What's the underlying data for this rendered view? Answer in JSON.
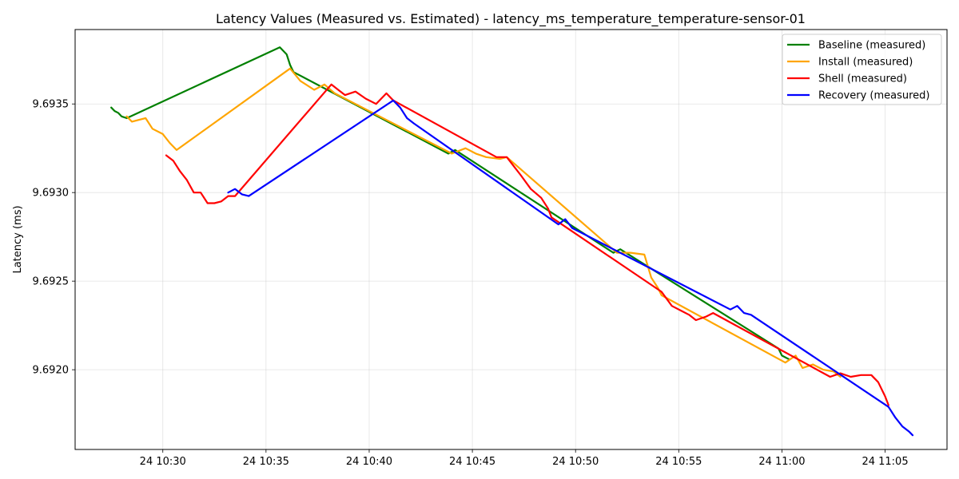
{
  "chart_data": {
    "type": "line",
    "title": "Latency Values (Measured vs. Estimated) - latency_ms_temperature_temperature-sensor-01",
    "xlabel": "",
    "ylabel": "Latency (ms)",
    "x_ticks": [
      "24 10:30",
      "24 10:35",
      "24 10:40",
      "24 10:45",
      "24 10:50",
      "24 10:55",
      "24 11:00",
      "24 11:05"
    ],
    "y_ticks": [
      "9.6920",
      "9.6925",
      "9.6930",
      "9.6935"
    ],
    "xlim": [
      "10:25:45",
      "11:08:00"
    ],
    "ylim": [
      9.69155,
      9.69392
    ],
    "grid": true,
    "legend_position": "top-right",
    "series": [
      {
        "name": "Baseline (measured)",
        "color": "#008000",
        "points": [
          [
            "10:27:30",
            9.69348
          ],
          [
            "10:27:40",
            9.69346
          ],
          [
            "10:27:50",
            9.69345
          ],
          [
            "10:28:00",
            9.69343
          ],
          [
            "10:28:15",
            9.69342
          ],
          [
            "10:35:40",
            9.69382
          ],
          [
            "10:35:50",
            9.6938
          ],
          [
            "10:36:00",
            9.69378
          ],
          [
            "10:36:10",
            9.69372
          ],
          [
            "10:36:20",
            9.69368
          ],
          [
            "10:43:40",
            9.69323
          ],
          [
            "10:43:50",
            9.69322
          ],
          [
            "10:44:10",
            9.69324
          ],
          [
            "10:51:50",
            9.69266
          ],
          [
            "10:52:00",
            9.69267
          ],
          [
            "10:52:10",
            9.69268
          ],
          [
            "10:59:50",
            9.69212
          ],
          [
            "11:00:00",
            9.69208
          ],
          [
            "11:00:10",
            9.69207
          ],
          [
            "11:00:20",
            9.69206
          ]
        ]
      },
      {
        "name": "Install (measured)",
        "color": "#FFA500",
        "points": [
          [
            "10:28:15",
            9.69343
          ],
          [
            "10:28:30",
            9.6934
          ],
          [
            "10:28:50",
            9.69341
          ],
          [
            "10:29:10",
            9.69342
          ],
          [
            "10:29:30",
            9.69336
          ],
          [
            "10:30:00",
            9.69333
          ],
          [
            "10:30:20",
            9.69328
          ],
          [
            "10:30:40",
            9.69324
          ],
          [
            "10:36:10",
            9.6937
          ],
          [
            "10:36:40",
            9.69363
          ],
          [
            "10:37:20",
            9.69358
          ],
          [
            "10:37:50",
            9.69361
          ],
          [
            "10:38:20",
            9.69356
          ],
          [
            "10:44:00",
            9.69322
          ],
          [
            "10:44:40",
            9.69325
          ],
          [
            "10:45:10",
            9.69322
          ],
          [
            "10:45:40",
            9.6932
          ],
          [
            "10:46:20",
            9.69319
          ],
          [
            "10:46:40",
            9.6932
          ],
          [
            "10:52:00",
            9.69266
          ],
          [
            "10:52:40",
            9.69266
          ],
          [
            "10:53:20",
            9.69265
          ],
          [
            "10:53:40",
            9.69252
          ],
          [
            "10:54:00",
            9.69246
          ],
          [
            "10:54:10",
            9.69242
          ],
          [
            "11:00:10",
            9.69204
          ],
          [
            "11:00:40",
            9.69208
          ],
          [
            "11:01:00",
            9.69201
          ],
          [
            "11:01:30",
            9.69203
          ],
          [
            "11:02:00",
            9.692
          ],
          [
            "11:02:30",
            9.69199
          ],
          [
            "11:02:50",
            9.69196
          ]
        ]
      },
      {
        "name": "Shell (measured)",
        "color": "#FF0000",
        "points": [
          [
            "10:30:10",
            9.69321
          ],
          [
            "10:30:30",
            9.69318
          ],
          [
            "10:30:50",
            9.69312
          ],
          [
            "10:31:10",
            9.69307
          ],
          [
            "10:31:30",
            9.693
          ],
          [
            "10:31:50",
            9.693
          ],
          [
            "10:32:10",
            9.69294
          ],
          [
            "10:32:30",
            9.69294
          ],
          [
            "10:32:50",
            9.69295
          ],
          [
            "10:33:10",
            9.69298
          ],
          [
            "10:33:30",
            9.69298
          ],
          [
            "10:38:10",
            9.69361
          ],
          [
            "10:38:30",
            9.69358
          ],
          [
            "10:38:50",
            9.69355
          ],
          [
            "10:39:20",
            9.69357
          ],
          [
            "10:39:50",
            9.69353
          ],
          [
            "10:40:20",
            9.6935
          ],
          [
            "10:40:50",
            9.69356
          ],
          [
            "10:41:10",
            9.69352
          ],
          [
            "10:46:10",
            9.6932
          ],
          [
            "10:46:40",
            9.6932
          ],
          [
            "10:47:00",
            9.69315
          ],
          [
            "10:47:20",
            9.6931
          ],
          [
            "10:47:50",
            9.69302
          ],
          [
            "10:48:20",
            9.69297
          ],
          [
            "10:48:40",
            9.69291
          ],
          [
            "10:48:50",
            9.69286
          ],
          [
            "10:54:10",
            9.69244
          ],
          [
            "10:54:40",
            9.69236
          ],
          [
            "10:55:10",
            9.69233
          ],
          [
            "10:55:30",
            9.69231
          ],
          [
            "10:55:50",
            9.69228
          ],
          [
            "10:56:20",
            9.6923
          ],
          [
            "10:56:40",
            9.69232
          ],
          [
            "11:02:20",
            9.69196
          ],
          [
            "11:02:50",
            9.69198
          ],
          [
            "11:03:20",
            9.69196
          ],
          [
            "11:03:50",
            9.69197
          ],
          [
            "11:04:20",
            9.69197
          ],
          [
            "11:04:40",
            9.69193
          ],
          [
            "11:05:00",
            9.69185
          ],
          [
            "11:05:10",
            9.6918
          ]
        ]
      },
      {
        "name": "Recovery (measured)",
        "color": "#0000FF",
        "points": [
          [
            "10:33:10",
            9.693
          ],
          [
            "10:33:30",
            9.69302
          ],
          [
            "10:33:50",
            9.69299
          ],
          [
            "10:34:10",
            9.69298
          ],
          [
            "10:41:10",
            9.69352
          ],
          [
            "10:41:30",
            9.69348
          ],
          [
            "10:41:50",
            9.69342
          ],
          [
            "10:42:10",
            9.69339
          ],
          [
            "10:49:10",
            9.69282
          ],
          [
            "10:49:30",
            9.69285
          ],
          [
            "10:49:50",
            9.6928
          ],
          [
            "10:50:10",
            9.69278
          ],
          [
            "10:57:30",
            9.69234
          ],
          [
            "10:57:50",
            9.69236
          ],
          [
            "10:58:10",
            9.69232
          ],
          [
            "10:58:30",
            9.69231
          ],
          [
            "11:05:10",
            9.69179
          ],
          [
            "11:05:30",
            9.69173
          ],
          [
            "11:05:50",
            9.69168
          ],
          [
            "11:06:10",
            9.69165
          ],
          [
            "11:06:20",
            9.69163
          ]
        ]
      }
    ]
  }
}
